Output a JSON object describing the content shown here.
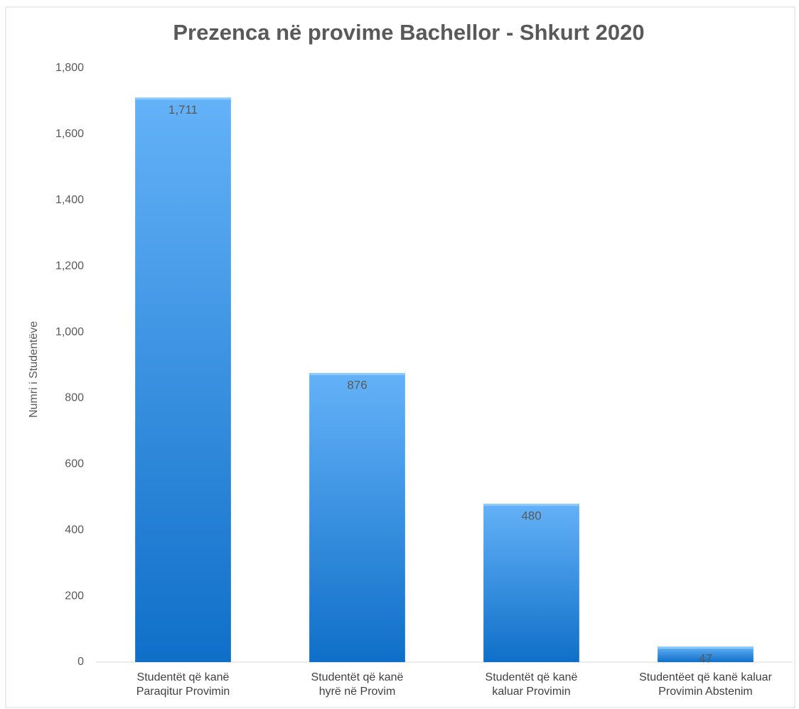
{
  "chart_data": {
    "type": "bar",
    "title": "Prezenca në provime Bachellor - Shkurt 2020",
    "y_label": "Numri i Studentëve",
    "categories": [
      "Studentët që kanë\nParaqitur Provimin",
      "Studentët që kanë\nhyrë në Provim",
      "Studentët që kanë\nkaluar Provimin",
      "Studentëet që kanë  kaluar\nProvimin Abstenim"
    ],
    "values": [
      1711,
      876,
      480,
      47
    ],
    "value_labels": [
      "1,711",
      "876",
      "480",
      "47"
    ],
    "color": "#3d93e6",
    "ylim": [
      0,
      1800
    ],
    "yticks": [
      0,
      200,
      400,
      600,
      800,
      {
        "value": 1000,
        "label": "1,000"
      },
      {
        "value": 1200,
        "label": "1,200"
      },
      {
        "value": 1400,
        "label": "1,400"
      },
      {
        "value": 1600,
        "label": "1,600"
      },
      {
        "value": 1800,
        "label": "1,800"
      }
    ],
    "grid": false
  }
}
